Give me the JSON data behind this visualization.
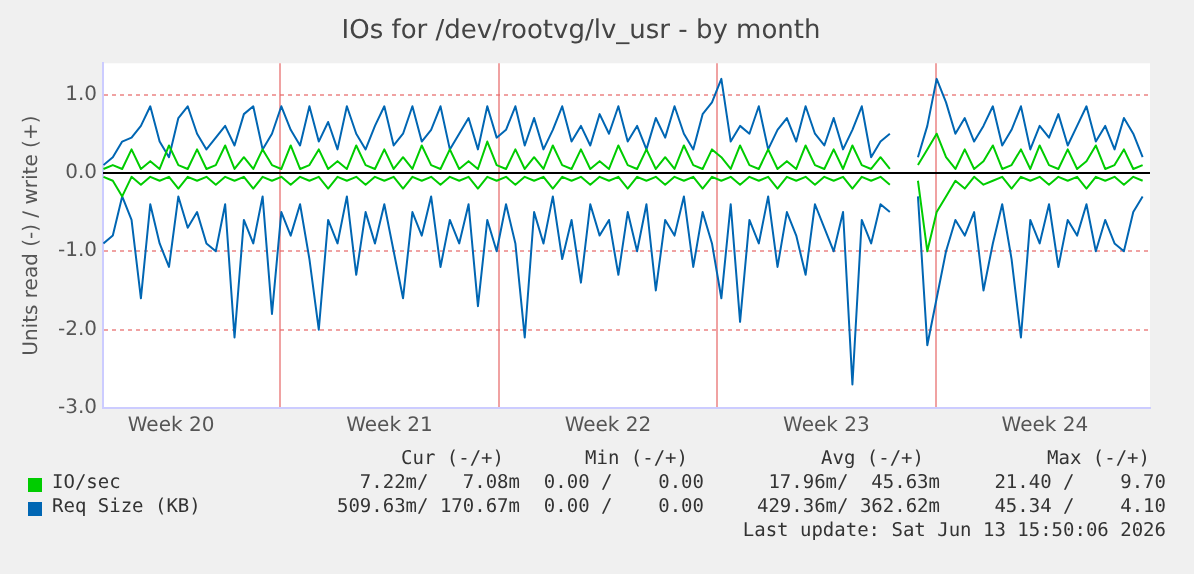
{
  "chart_data": {
    "type": "line",
    "title": "IOs for /dev/rootvg/lv_usr - by month",
    "ylabel": "Units read (-) / write (+)",
    "x": [
      "2026-05-12T08:00",
      "2026-05-12T15:12",
      "2026-05-12T22:24",
      "2026-05-13T05:36",
      "2026-05-13T12:48",
      "2026-05-13T20:00",
      "2026-05-14T03:12",
      "2026-05-14T10:24",
      "2026-05-14T17:36",
      "2026-05-15T00:48",
      "2026-05-15T08:00",
      "2026-05-15T15:12",
      "2026-05-15T22:24",
      "2026-05-16T05:36",
      "2026-05-16T12:48",
      "2026-05-16T20:00",
      "2026-05-17T03:12",
      "2026-05-17T10:24",
      "2026-05-17T17:36",
      "2026-05-18T00:48",
      "2026-05-18T08:00",
      "2026-05-18T15:12",
      "2026-05-18T22:24",
      "2026-05-19T05:36",
      "2026-05-19T12:48",
      "2026-05-19T20:00",
      "2026-05-20T03:12",
      "2026-05-20T10:24",
      "2026-05-20T17:36",
      "2026-05-21T00:48",
      "2026-05-21T08:00",
      "2026-05-21T15:12",
      "2026-05-21T22:24",
      "2026-05-22T05:36",
      "2026-05-22T12:48",
      "2026-05-22T20:00",
      "2026-05-23T03:12",
      "2026-05-23T10:24",
      "2026-05-23T17:36",
      "2026-05-24T00:48",
      "2026-05-24T08:00",
      "2026-05-24T15:12",
      "2026-05-24T22:24",
      "2026-05-25T05:36",
      "2026-05-25T12:48",
      "2026-05-25T20:00",
      "2026-05-26T03:12",
      "2026-05-26T10:24",
      "2026-05-26T17:36",
      "2026-05-27T00:48",
      "2026-05-27T08:00",
      "2026-05-27T15:12",
      "2026-05-27T22:24",
      "2026-05-28T05:36",
      "2026-05-28T12:48",
      "2026-05-28T20:00",
      "2026-05-29T03:12",
      "2026-05-29T10:24",
      "2026-05-29T17:36",
      "2026-05-30T00:48",
      "2026-05-30T08:00",
      "2026-05-30T15:12",
      "2026-05-30T22:24",
      "2026-05-31T05:36",
      "2026-05-31T12:48",
      "2026-05-31T20:00",
      "2026-06-01T03:12",
      "2026-06-01T10:24",
      "2026-06-01T17:36",
      "2026-06-02T00:48",
      "2026-06-02T08:00",
      "2026-06-02T15:12",
      "2026-06-02T22:24",
      "2026-06-03T05:36",
      "2026-06-03T12:48",
      "2026-06-03T20:00",
      "2026-06-04T03:12",
      "2026-06-04T10:24",
      "2026-06-04T17:36",
      "2026-06-05T00:48",
      "2026-06-05T08:00",
      "2026-06-05T15:12",
      "2026-06-05T22:24",
      "2026-06-06T05:36",
      "2026-06-06T12:48",
      "2026-06-06T20:00",
      "2026-06-07T03:12",
      "2026-06-07T10:24",
      "2026-06-07T17:36",
      "2026-06-08T00:48",
      "2026-06-08T08:00",
      "2026-06-08T15:12",
      "2026-06-08T22:24",
      "2026-06-09T05:36",
      "2026-06-09T12:48",
      "2026-06-09T20:00",
      "2026-06-10T03:12",
      "2026-06-10T10:24",
      "2026-06-10T17:36",
      "2026-06-11T00:48",
      "2026-06-11T08:00",
      "2026-06-11T15:12",
      "2026-06-11T22:24",
      "2026-06-12T05:36",
      "2026-06-12T12:48",
      "2026-06-12T20:00",
      "2026-06-13T03:12",
      "2026-06-13T10:24",
      "2026-06-13T17:36",
      "2026-06-14T00:48",
      "2026-06-14T08:00",
      "2026-06-14T15:12"
    ],
    "series": [
      {
        "name": "IO/sec",
        "color": "#00cc00",
        "values": [
          0.05,
          0.1,
          0.05,
          0.3,
          0.05,
          0.15,
          0.05,
          0.35,
          0.1,
          0.05,
          0.3,
          0.05,
          0.1,
          0.35,
          0.05,
          0.2,
          0.05,
          0.3,
          0.1,
          0.05,
          0.35,
          0.05,
          0.1,
          0.3,
          0.05,
          0.15,
          0.05,
          0.35,
          0.1,
          0.05,
          0.3,
          0.05,
          0.2,
          0.05,
          0.35,
          0.1,
          0.05,
          0.3,
          0.05,
          0.15,
          0.05,
          0.4,
          0.1,
          0.05,
          0.3,
          0.05,
          0.2,
          0.05,
          0.35,
          0.1,
          0.05,
          0.3,
          0.05,
          0.15,
          0.05,
          0.35,
          0.1,
          0.05,
          0.3,
          0.05,
          0.2,
          0.05,
          0.35,
          0.1,
          0.05,
          0.3,
          0.2,
          0.05,
          0.35,
          0.1,
          0.05,
          0.3,
          0.05,
          0.15,
          0.05,
          0.35,
          0.1,
          0.05,
          0.3,
          0.05,
          0.35,
          0.1,
          0.05,
          0.2,
          0.05,
          null,
          null,
          0.1,
          0.3,
          0.5,
          0.2,
          0.05,
          0.3,
          0.05,
          0.15,
          0.35,
          0.05,
          0.1,
          0.3,
          0.05,
          0.35,
          0.1,
          0.05,
          0.3,
          0.05,
          0.15,
          0.35,
          0.05,
          0.1,
          0.3,
          0.05,
          0.1
        ]
      },
      {
        "color": "#00cc00",
        "values": [
          -0.05,
          -0.1,
          -0.3,
          -0.05,
          -0.15,
          -0.05,
          -0.1,
          -0.05,
          -0.2,
          -0.05,
          -0.1,
          -0.05,
          -0.15,
          -0.05,
          -0.1,
          -0.05,
          -0.2,
          -0.05,
          -0.1,
          -0.05,
          -0.15,
          -0.05,
          -0.1,
          -0.05,
          -0.2,
          -0.05,
          -0.1,
          -0.05,
          -0.15,
          -0.05,
          -0.1,
          -0.05,
          -0.2,
          -0.05,
          -0.1,
          -0.05,
          -0.15,
          -0.05,
          -0.1,
          -0.05,
          -0.2,
          -0.05,
          -0.1,
          -0.05,
          -0.15,
          -0.05,
          -0.1,
          -0.05,
          -0.2,
          -0.05,
          -0.1,
          -0.05,
          -0.15,
          -0.05,
          -0.1,
          -0.05,
          -0.2,
          -0.05,
          -0.1,
          -0.05,
          -0.15,
          -0.05,
          -0.1,
          -0.05,
          -0.2,
          -0.05,
          -0.1,
          -0.05,
          -0.15,
          -0.05,
          -0.1,
          -0.05,
          -0.2,
          -0.05,
          -0.1,
          -0.05,
          -0.15,
          -0.05,
          -0.1,
          -0.05,
          -0.2,
          -0.05,
          -0.1,
          -0.05,
          -0.15,
          null,
          null,
          -0.1,
          -1.0,
          -0.5,
          -0.3,
          -0.1,
          -0.2,
          -0.05,
          -0.15,
          -0.1,
          -0.05,
          -0.2,
          -0.05,
          -0.1,
          -0.05,
          -0.15,
          -0.05,
          -0.1,
          -0.05,
          -0.2,
          -0.05,
          -0.1,
          -0.05,
          -0.15,
          -0.05,
          -0.1
        ]
      },
      {
        "name": "Req Size (KB)",
        "color": "#0066b3",
        "values": [
          0.1,
          0.2,
          0.4,
          0.45,
          0.6,
          0.85,
          0.4,
          0.2,
          0.7,
          0.85,
          0.5,
          0.3,
          0.45,
          0.6,
          0.35,
          0.75,
          0.85,
          0.3,
          0.5,
          0.85,
          0.55,
          0.35,
          0.85,
          0.4,
          0.65,
          0.3,
          0.85,
          0.5,
          0.3,
          0.6,
          0.85,
          0.35,
          0.5,
          0.85,
          0.4,
          0.55,
          0.85,
          0.3,
          0.5,
          0.7,
          0.3,
          0.85,
          0.45,
          0.55,
          0.85,
          0.35,
          0.7,
          0.3,
          0.55,
          0.85,
          0.4,
          0.6,
          0.35,
          0.75,
          0.5,
          0.85,
          0.4,
          0.6,
          0.3,
          0.7,
          0.45,
          0.85,
          0.5,
          0.3,
          0.75,
          0.9,
          1.2,
          0.4,
          0.6,
          0.5,
          0.85,
          0.3,
          0.55,
          0.7,
          0.4,
          0.85,
          0.5,
          0.35,
          0.7,
          0.3,
          0.55,
          0.85,
          0.2,
          0.4,
          0.5,
          null,
          null,
          0.2,
          0.6,
          1.2,
          0.9,
          0.5,
          0.7,
          0.4,
          0.6,
          0.85,
          0.35,
          0.55,
          0.85,
          0.3,
          0.6,
          0.45,
          0.75,
          0.35,
          0.6,
          0.85,
          0.4,
          0.6,
          0.3,
          0.7,
          0.5,
          0.2
        ]
      },
      {
        "color": "#0066b3",
        "values": [
          -0.9,
          -0.8,
          -0.3,
          -0.6,
          -1.6,
          -0.4,
          -0.9,
          -1.2,
          -0.3,
          -0.7,
          -0.5,
          -0.9,
          -1.0,
          -0.4,
          -2.1,
          -0.6,
          -0.9,
          -0.3,
          -1.8,
          -0.5,
          -0.8,
          -0.4,
          -1.1,
          -2.0,
          -0.6,
          -0.9,
          -0.3,
          -1.3,
          -0.5,
          -0.9,
          -0.4,
          -1.0,
          -1.6,
          -0.5,
          -0.8,
          -0.3,
          -1.2,
          -0.6,
          -0.9,
          -0.4,
          -1.7,
          -0.6,
          -1.0,
          -0.4,
          -0.9,
          -2.1,
          -0.5,
          -0.9,
          -0.3,
          -1.1,
          -0.6,
          -1.4,
          -0.4,
          -0.8,
          -0.6,
          -1.3,
          -0.5,
          -1.0,
          -0.4,
          -1.5,
          -0.6,
          -0.8,
          -0.3,
          -1.2,
          -0.5,
          -0.9,
          -1.6,
          -0.4,
          -1.9,
          -0.6,
          -0.9,
          -0.3,
          -1.2,
          -0.5,
          -0.8,
          -1.3,
          -0.4,
          -0.7,
          -1.0,
          -0.5,
          -2.7,
          -0.6,
          -0.9,
          -0.4,
          -0.5,
          null,
          null,
          -0.3,
          -2.2,
          -1.6,
          -1.0,
          -0.6,
          -0.8,
          -0.5,
          -1.5,
          -0.9,
          -0.4,
          -1.1,
          -2.1,
          -0.6,
          -0.9,
          -0.4,
          -1.2,
          -0.6,
          -0.8,
          -0.4,
          -1.0,
          -0.6,
          -0.9,
          -1.0,
          -0.5,
          -0.3
        ]
      }
    ],
    "xlim": [
      "2026-05-12T07:40",
      "2026-06-14T20:52"
    ],
    "xticks": [
      {
        "value": "2026-05-14T12:00",
        "label": "Week 20"
      },
      {
        "value": "2026-05-18",
        "label": null
      },
      {
        "value": "2026-05-21T12:00",
        "label": "Week 21"
      },
      {
        "value": "2026-05-25",
        "label": null
      },
      {
        "value": "2026-05-28T12:00",
        "label": "Week 22"
      },
      {
        "value": "2026-06-01",
        "label": null
      },
      {
        "value": "2026-06-04T12:00",
        "label": "Week 23"
      },
      {
        "value": "2026-06-08",
        "label": null
      },
      {
        "value": "2026-06-11T12:00",
        "label": "Week 24"
      }
    ],
    "ylim": [
      -3,
      1.4
    ],
    "yticks": [
      {
        "value": -3,
        "label": "-3.0"
      },
      {
        "value": -2,
        "label": "-2.0"
      },
      {
        "value": -1,
        "label": "-1.0"
      },
      {
        "value": 0,
        "label": "0.0"
      },
      {
        "value": 1,
        "label": "1.0"
      }
    ],
    "grid": true,
    "legend": "bottom",
    "marker": "none",
    "line_style": "solid",
    "ref_lines": [
      {
        "axis": "y",
        "value": 0,
        "color": "#000000"
      }
    ],
    "annotations": [
      "Cur (-/+)",
      "Min (-/+)",
      "Avg (-/+)",
      "Max (-/+)",
      "7.22m/   7.08m",
      "0.00 /    0.00",
      "17.96m/  45.63m",
      "21.40 /    9.70",
      "509.63m/ 170.67m",
      "0.00 /    0.00",
      "429.36m/ 362.62m",
      "45.34 /    4.10",
      "Last update: Sat Jun 13 15:50:06 2026"
    ]
  }
}
